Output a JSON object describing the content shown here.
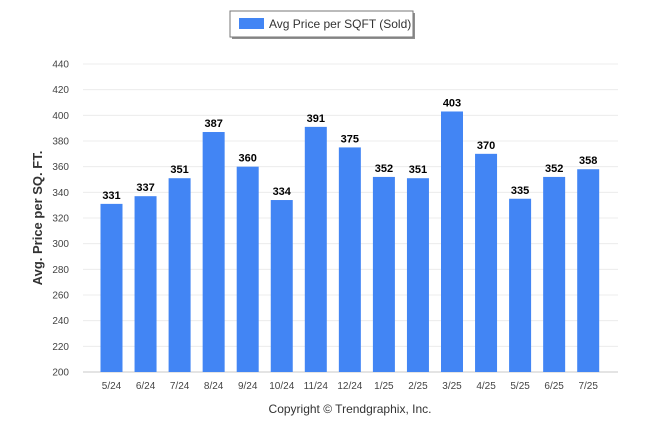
{
  "chart_data": {
    "type": "bar",
    "categories": [
      "5/24",
      "6/24",
      "7/24",
      "8/24",
      "9/24",
      "10/24",
      "11/24",
      "12/24",
      "1/25",
      "2/25",
      "3/25",
      "4/25",
      "5/25",
      "6/25",
      "7/25"
    ],
    "series": [
      {
        "name": "Avg Price per SQFT (Sold)",
        "values": [
          331,
          337,
          351,
          387,
          360,
          334,
          391,
          375,
          352,
          351,
          403,
          370,
          335,
          352,
          358
        ],
        "color": "#4285f4"
      }
    ],
    "ylabel": "Avg. Price per SQ. FT.",
    "xlabel": "",
    "ylim": [
      200,
      440
    ],
    "yticks": [
      200,
      220,
      240,
      260,
      280,
      300,
      320,
      340,
      360,
      380,
      400,
      420,
      440
    ],
    "grid": true,
    "legend_position": "top-center",
    "data_labels": true
  },
  "footer": {
    "copyright": "Copyright © Trendgraphix, Inc."
  }
}
